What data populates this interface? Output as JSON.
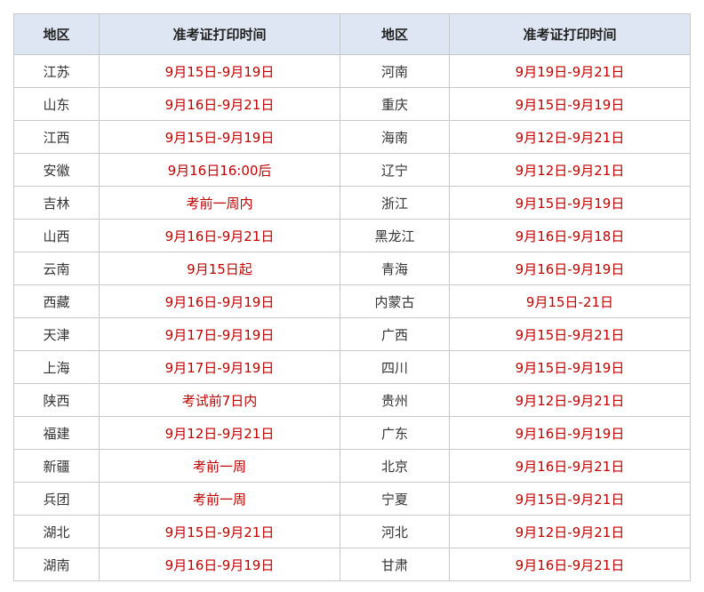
{
  "table": {
    "header": [
      "地区",
      "准考证打印时间",
      "地区",
      "准考证打印时间"
    ],
    "rows": [
      [
        "江苏",
        "9月15日-9月19日",
        "河南",
        "9月19日-9月21日"
      ],
      [
        "山东",
        "9月16日-9月21日",
        "重庆",
        "9月15日-9月19日"
      ],
      [
        "江西",
        "9月15日-9月19日",
        "海南",
        "9月12日-9月21日"
      ],
      [
        "安徽",
        "9月16日16:00后",
        "辽宁",
        "9月12日-9月21日"
      ],
      [
        "吉林",
        "考前一周内",
        "浙江",
        "9月15日-9月19日"
      ],
      [
        "山西",
        "9月16日-9月21日",
        "黑龙江",
        "9月16日-9月18日"
      ],
      [
        "云南",
        "9月15日起",
        "青海",
        "9月16日-9月19日"
      ],
      [
        "西藏",
        "9月16日-9月19日",
        "内蒙古",
        "9月15日-21日"
      ],
      [
        "天津",
        "9月17日-9月19日",
        "广西",
        "9月15日-9月21日"
      ],
      [
        "上海",
        "9月17日-9月19日",
        "四川",
        "9月15日-9月19日"
      ],
      [
        "陕西",
        "考试前7日内",
        "贵州",
        "9月12日-9月21日"
      ],
      [
        "福建",
        "9月12日-9月21日",
        "广东",
        "9月16日-9月19日"
      ],
      [
        "新疆",
        "考前一周",
        "北京",
        "9月16日-9月21日"
      ],
      [
        "兵团",
        "考前一周",
        "宁夏",
        "9月15日-9月21日"
      ],
      [
        "湖北",
        "9月15日-9月21日",
        "河北",
        "9月12日-9月21日"
      ],
      [
        "湖南",
        "9月16日-9月19日",
        "甘肃",
        "9月16日-9月21日"
      ]
    ]
  }
}
